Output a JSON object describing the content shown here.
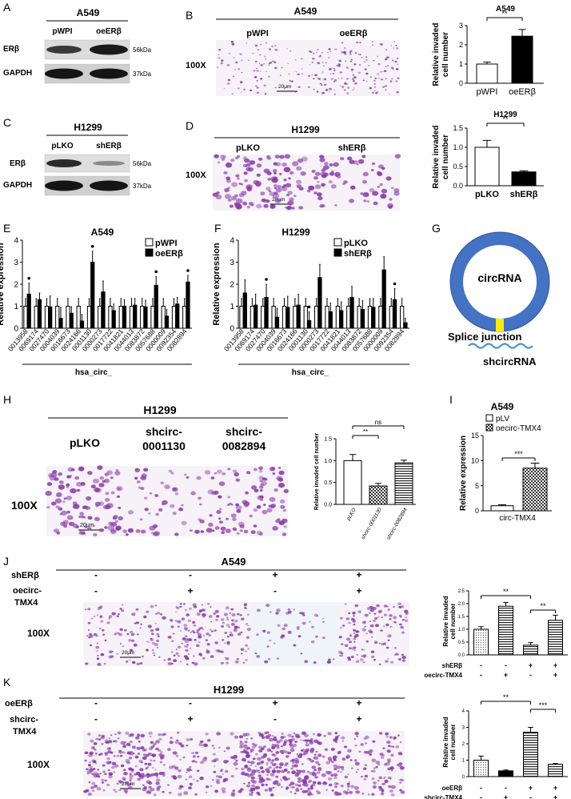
{
  "colors": {
    "invasion_bg": "#f6f2f8",
    "cell": "#8a3aa8",
    "ctrl_fill": "#ffffff",
    "test_fill": "#000000"
  },
  "panel_labels": [
    "A",
    "B",
    "C",
    "D",
    "E",
    "F",
    "G",
    "H",
    "I",
    "J",
    "K"
  ],
  "blot_A": {
    "cell_line": "A549",
    "lanes": [
      "pWPI",
      "oeERβ"
    ],
    "rows": [
      "ERβ",
      "GAPDH"
    ],
    "sizes": [
      "56kDa",
      "37kDa"
    ]
  },
  "blot_C": {
    "cell_line": "H1299",
    "lanes": [
      "pLKO",
      "shERβ"
    ],
    "rows": [
      "ERβ",
      "GAPDH"
    ],
    "sizes": [
      "56kDa",
      "37kDa"
    ]
  },
  "panel_B": {
    "cell_line": "A549",
    "groups": [
      "pWPI",
      "oeERβ"
    ],
    "mag": "100X",
    "scale": "20μm"
  },
  "panel_D": {
    "cell_line": "H1299",
    "groups": [
      "pLKO",
      "shERβ"
    ],
    "mag": "100X",
    "scale": "20μm"
  },
  "panel_H": {
    "cell_line": "H1299",
    "groups": [
      "pLKO",
      "shcirc-",
      "shcirc-"
    ],
    "groups2": [
      "",
      "0001130",
      "0082894"
    ],
    "mag": "100X",
    "scale": "20μm"
  },
  "panel_J": {
    "cell_line": "A549",
    "row1_label": "shERβ",
    "row2_label": "oecirc-",
    "row2_label2": "TMX4",
    "row1": [
      "-",
      "-",
      "+",
      "+"
    ],
    "row2": [
      "-",
      "+",
      "-",
      "+"
    ],
    "mag": "100X",
    "scale": "20μm"
  },
  "panel_K": {
    "cell_line": "H1299",
    "row1_label": "oeERβ",
    "row2_label": "shcirc-",
    "row2_label2": "TMX4",
    "row1": [
      "-",
      "-",
      "+",
      "+"
    ],
    "row2": [
      "-",
      "+",
      "-",
      "+"
    ],
    "mag": "100X",
    "scale": "20μm"
  },
  "panel_G": {
    "circ": "circRNA",
    "junction": "Splice junction",
    "sh": "shcircRNA"
  },
  "chart_data": [
    {
      "id": "B",
      "type": "bar",
      "title": "A549",
      "ylabel": "Relative invaded cell number",
      "ylabel1": "Relative invaded",
      "ylabel2": "cell number",
      "categories": [
        "pWPI",
        "oeERβ"
      ],
      "values": [
        1.0,
        2.45
      ],
      "errors": [
        0.1,
        0.35
      ],
      "ylim": [
        0,
        3
      ],
      "yticks": [
        "0",
        "1",
        "2",
        "3"
      ],
      "sig": [
        {
          "label": "**"
        }
      ]
    },
    {
      "id": "D",
      "type": "bar",
      "title": "H1299",
      "ylabel": "Relative invaded cell number",
      "ylabel1": "Relative invaded",
      "ylabel2": "cell number",
      "categories": [
        "pLKO",
        "shERβ"
      ],
      "values": [
        1.0,
        0.36
      ],
      "errors": [
        0.18,
        0.03
      ],
      "ylim": [
        0,
        1.5
      ],
      "yticks": [
        "0.0",
        "0.5",
        "1.0",
        "1.5"
      ],
      "sig": [
        {
          "label": "**"
        }
      ]
    },
    {
      "id": "E",
      "type": "bar",
      "title": "A549",
      "ylabel": "Relative expression",
      "xlabel": "hsa_circ_",
      "ylim": [
        0,
        4
      ],
      "yticks": [
        "0",
        "1",
        "2",
        "3",
        "4"
      ],
      "categories": [
        "0013958",
        "0069174",
        "0027470",
        "0004039",
        "0016673",
        "0024166",
        "0001130",
        "0000273",
        "0017722",
        "0041821",
        "0044013",
        "0083872",
        "0057688",
        "0000009",
        "0092354",
        "0082894"
      ],
      "series": [
        {
          "name": "pWPI",
          "values": [
            1,
            1,
            1,
            1,
            1,
            1,
            1,
            1,
            1,
            1,
            1,
            1,
            1,
            1,
            1,
            1
          ]
        },
        {
          "name": "oeERβ",
          "values": [
            1.55,
            1.3,
            0.97,
            0.45,
            0.68,
            0.33,
            3.0,
            1.65,
            0.8,
            1.0,
            1.05,
            0.97,
            1.95,
            0.55,
            1.1,
            2.1
          ]
        }
      ],
      "errors": [
        0.5,
        0.3,
        0.5,
        0.5,
        0.3,
        0.3,
        0.5,
        0.5,
        0.3,
        0.3,
        0.3,
        0.3,
        0.4,
        0.3,
        0.3,
        0.3
      ],
      "dots": [
        0,
        6,
        12,
        15
      ]
    },
    {
      "id": "F",
      "type": "bar",
      "title": "H1299",
      "ylabel": "Relative expression",
      "xlabel": "hsa_circ_",
      "ylim": [
        0,
        4
      ],
      "yticks": [
        "0",
        "1",
        "2",
        "3",
        "4"
      ],
      "categories": [
        "0013958",
        "0069174",
        "0027470",
        "0004039",
        "0016673",
        "0024166",
        "0001130",
        "0000273",
        "0017722",
        "0041821",
        "0044013",
        "0083872",
        "0057688",
        "0000009",
        "0092354",
        "0082894"
      ],
      "series": [
        {
          "name": "pLKO",
          "values": [
            1,
            1,
            1,
            1,
            1,
            1,
            1,
            1,
            1,
            1,
            1,
            1,
            1,
            1,
            1,
            1
          ]
        },
        {
          "name": "shERβ",
          "values": [
            1.6,
            1.05,
            1.4,
            0.5,
            0.95,
            1.05,
            0.35,
            2.3,
            0.75,
            0.8,
            1.4,
            0.85,
            0.95,
            2.65,
            1.3,
            0.25
          ]
        }
      ],
      "errors": [
        0.6,
        0.5,
        0.6,
        0.4,
        0.5,
        0.5,
        0.4,
        0.6,
        0.4,
        0.4,
        0.5,
        0.4,
        0.4,
        0.6,
        0.5,
        0.2
      ],
      "dots": [
        2,
        6,
        14
      ]
    },
    {
      "id": "H",
      "type": "bar",
      "ylabel": "Relative invaded cell number",
      "ylim": [
        0,
        1.5
      ],
      "yticks": [
        "0.0",
        "0.5",
        "1.0",
        "1.5"
      ],
      "categories": [
        "pLKO",
        "shcirc-0001130",
        "shcirc-0082894"
      ],
      "values": [
        1.0,
        0.42,
        0.95
      ],
      "errors": [
        0.14,
        0.06,
        0.06
      ],
      "sig": [
        {
          "label": "**"
        },
        {
          "label": "ns"
        }
      ]
    },
    {
      "id": "I",
      "type": "bar",
      "title": "A549",
      "ylabel": "Relative expression",
      "xlabel": "circ-TMX4",
      "ylim": [
        0,
        15
      ],
      "yticks": [
        "0",
        "5",
        "10",
        "15"
      ],
      "series": [
        {
          "name": "pLV",
          "values": [
            1.0
          ]
        },
        {
          "name": "oecirc-TMX4",
          "values": [
            8.5
          ]
        }
      ],
      "errors": [
        0.2,
        1.0
      ],
      "sig": [
        {
          "label": "***"
        }
      ]
    },
    {
      "id": "J",
      "type": "bar",
      "ylabel": "Relative invaded cell number",
      "ylabel1": "Relative invaded",
      "ylabel2": "cell number",
      "ylim": [
        0,
        2.5
      ],
      "yticks": [
        "0.0",
        "0.5",
        "1.0",
        "1.5",
        "2.0",
        "2.5"
      ],
      "values": [
        1.0,
        1.9,
        0.38,
        1.35
      ],
      "errors": [
        0.1,
        0.15,
        0.1,
        0.2
      ],
      "row_labels": [
        "shERβ",
        "oecirc-TMX4"
      ],
      "row1": [
        "-",
        "-",
        "+",
        "+"
      ],
      "row2": [
        "-",
        "+",
        "-",
        "+"
      ],
      "sig": [
        {
          "label": "**"
        },
        {
          "label": "**"
        }
      ]
    },
    {
      "id": "K",
      "type": "bar",
      "ylabel": "Relative invaded cell number",
      "ylabel1": "Relative invaded",
      "ylabel2": "cell number",
      "ylim": [
        0,
        4
      ],
      "yticks": [
        "0",
        "1",
        "2",
        "3",
        "4"
      ],
      "values": [
        1.0,
        0.35,
        2.7,
        0.75
      ],
      "errors": [
        0.25,
        0.05,
        0.3,
        0.05
      ],
      "row_labels": [
        "oeERβ",
        "shcirc-TMX4"
      ],
      "row1": [
        "-",
        "-",
        "+",
        "+"
      ],
      "row2": [
        "-",
        "+",
        "-",
        "+"
      ],
      "sig": [
        {
          "label": "**"
        },
        {
          "label": "***"
        }
      ]
    }
  ]
}
